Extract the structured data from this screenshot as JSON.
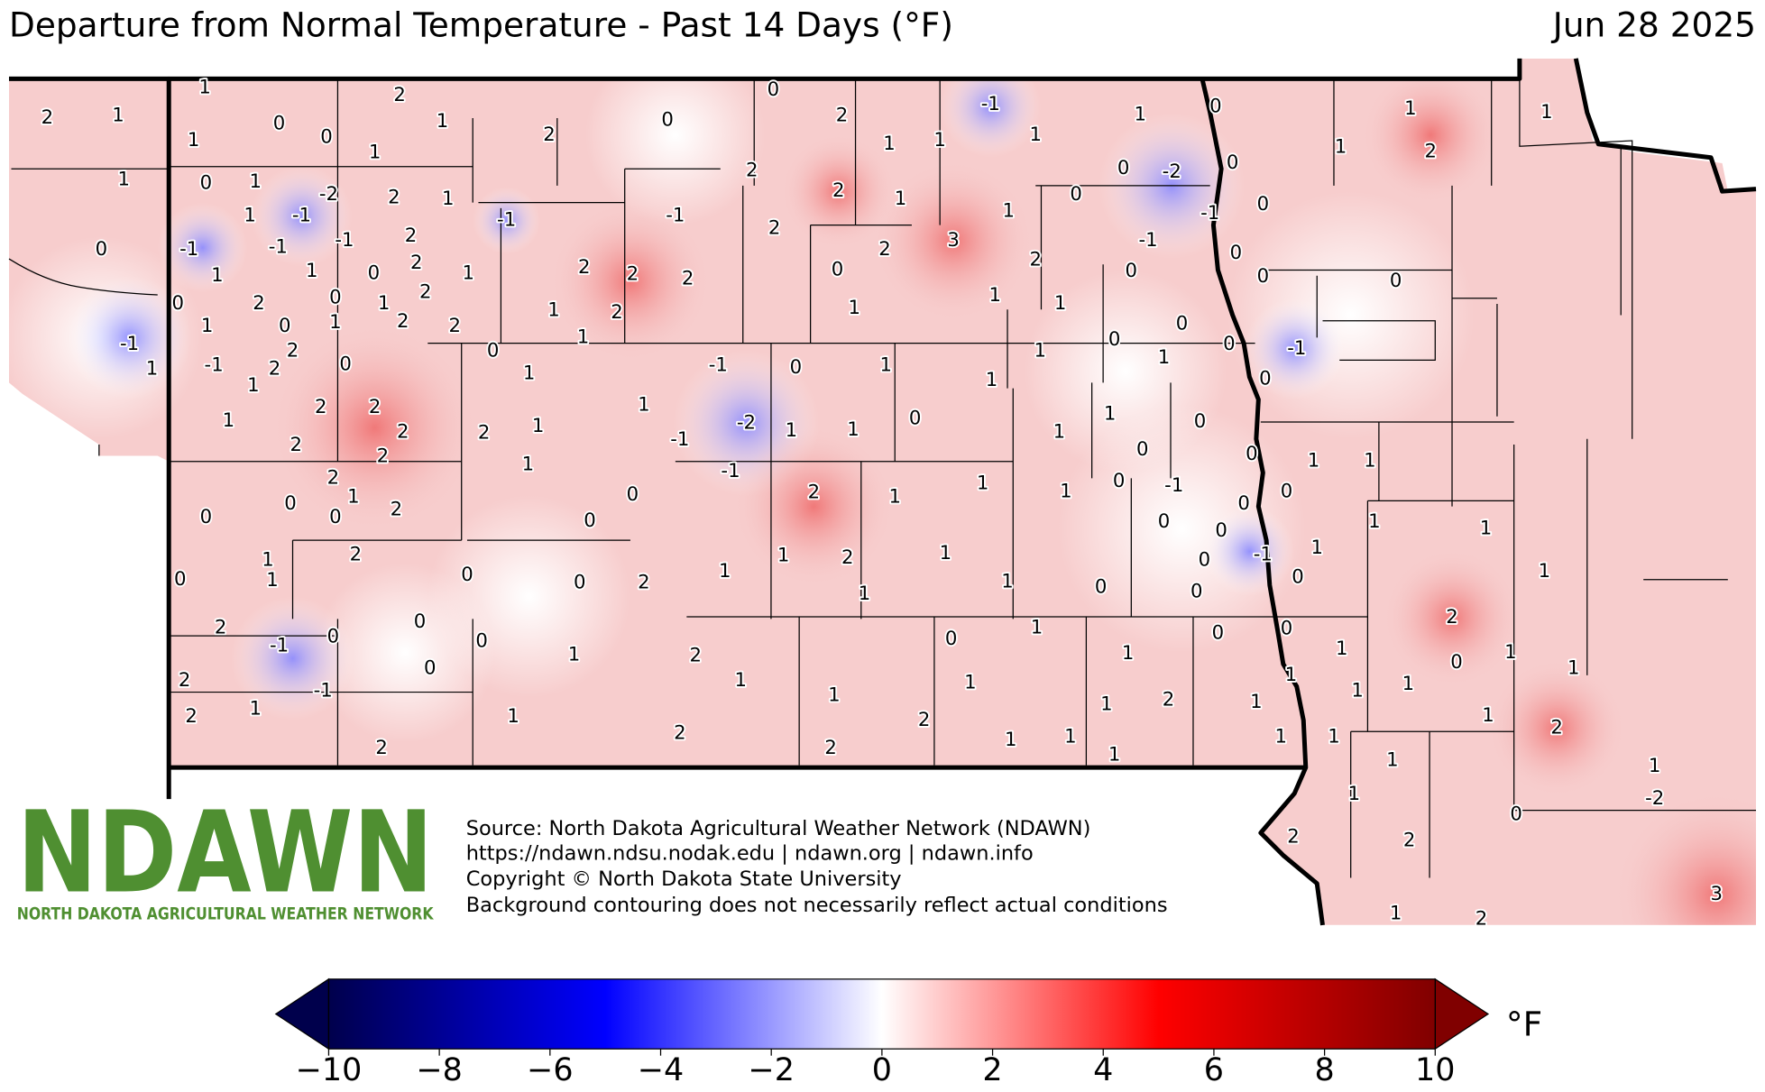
{
  "header": {
    "title": "Departure from Normal Temperature - Past 14 Days (°F)",
    "date": "Jun 28 2025"
  },
  "logo": {
    "name": "NDAWN",
    "subtitle": "NORTH DAKOTA AGRICULTURAL WEATHER NETWORK"
  },
  "source": [
    "Source: North Dakota Agricultural Weather Network (NDAWN)",
    "https://ndawn.ndsu.nodak.edu | ndawn.org | ndawn.info",
    "Copyright © North Dakota State University",
    "Background contouring does not necessarily reflect actual conditions"
  ],
  "stations": {
    "values": [
      2,
      1,
      1,
      0,
      -1,
      1,
      1,
      1,
      0,
      0,
      2,
      1,
      1,
      0,
      1,
      1,
      -1,
      -2,
      2,
      1,
      -1,
      -1,
      -1,
      2,
      2,
      1,
      1,
      1,
      2,
      0,
      0,
      1,
      2,
      0,
      1,
      0,
      1,
      2,
      2,
      -1,
      2,
      -1,
      2,
      0,
      1,
      1,
      2,
      2,
      2,
      2,
      2,
      2,
      1,
      2,
      0,
      0,
      0,
      1,
      1,
      0,
      2,
      2,
      -1,
      0,
      0,
      2,
      -1,
      0,
      2,
      1,
      2,
      2,
      0,
      0,
      2,
      2,
      2,
      1,
      1,
      -1,
      1,
      1,
      -1,
      2,
      2,
      2,
      2,
      1,
      2,
      1,
      0,
      1,
      1,
      -1,
      0,
      -2,
      -1,
      1,
      1,
      1,
      -1,
      0,
      2,
      3,
      1,
      1,
      2,
      1,
      1,
      0,
      1,
      0,
      -2,
      0,
      0,
      -1,
      -1,
      0,
      0,
      0,
      0,
      0,
      -1,
      0,
      0,
      0,
      1,
      0,
      1,
      1,
      0,
      1,
      1,
      0,
      0,
      0,
      1,
      1,
      2,
      1,
      1,
      0,
      0,
      2,
      1,
      1,
      1,
      0,
      -1,
      0,
      0,
      0,
      0,
      0,
      -1,
      1,
      0,
      0,
      1,
      1,
      1,
      0,
      0,
      2,
      1,
      1,
      2,
      1,
      1,
      1,
      0,
      2,
      0,
      0,
      1,
      1,
      0,
      1,
      1,
      1,
      1,
      1,
      2,
      1,
      1,
      1,
      1,
      1,
      2,
      2,
      0,
      1,
      -2,
      3,
      1,
      2,
      0,
      1,
      2,
      1,
      1,
      2,
      1,
      0,
      1,
      1,
      1,
      2,
      1,
      2,
      2,
      1,
      1,
      1,
      1,
      1,
      2,
      1
    ]
  },
  "colorbar": {
    "range": [
      -10,
      10
    ],
    "ticks": [
      {
        "value": -10,
        "label": "−10"
      },
      {
        "value": -8,
        "label": "−8"
      },
      {
        "value": -6,
        "label": "−6"
      },
      {
        "value": -4,
        "label": "−4"
      },
      {
        "value": -2,
        "label": "−2"
      },
      0,
      2,
      4,
      6,
      8,
      10
    ],
    "colors": [
      "#00004c",
      "#0000ff",
      "#ffffff",
      "#ff0000",
      "#800000"
    ],
    "unit": "°F"
  }
}
